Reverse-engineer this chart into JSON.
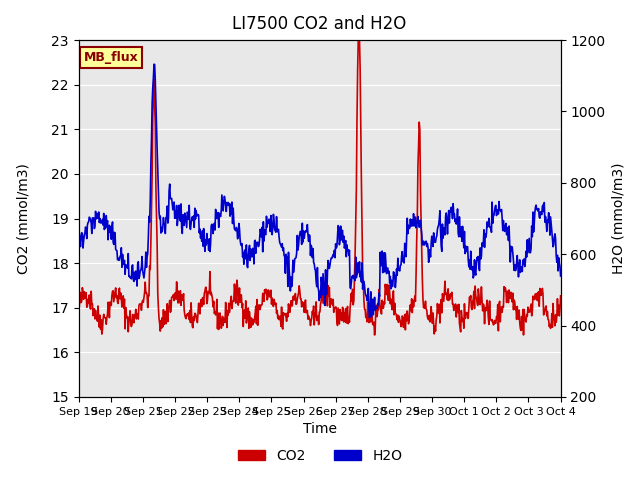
{
  "title": "LI7500 CO2 and H2O",
  "xlabel": "Time",
  "ylabel_left": "CO2 (mmol/m3)",
  "ylabel_right": "H2O (mmol/m3)",
  "ylim_left": [
    15.0,
    23.0
  ],
  "ylim_right": [
    200,
    1200
  ],
  "yticks_left": [
    15.0,
    16.0,
    17.0,
    18.0,
    19.0,
    20.0,
    21.0,
    22.0,
    23.0
  ],
  "yticks_right": [
    200,
    400,
    600,
    800,
    1000,
    1200
  ],
  "xtick_labels": [
    "Sep 19",
    "Sep 20",
    "Sep 21",
    "Sep 22",
    "Sep 23",
    "Sep 24",
    "Sep 25",
    "Sep 26",
    "Sep 27",
    "Sep 28",
    "Sep 29",
    "Sep 30",
    "Oct 1",
    "Oct 2",
    "Oct 3",
    "Oct 4"
  ],
  "co2_color": "#cc0000",
  "h2o_color": "#0000cc",
  "legend_co2": "CO2",
  "legend_h2o": "H2O",
  "annotation_text": "MB_flux",
  "annotation_bg": "#ffff99",
  "annotation_edge": "#8b0000",
  "bg_color": "#e8e8e8",
  "line_width": 1.2,
  "fig_bg": "#ffffff"
}
